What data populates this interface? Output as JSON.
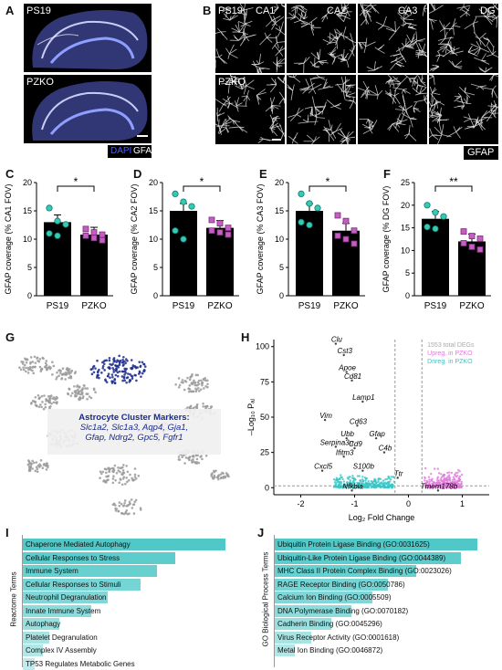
{
  "panel_labels": {
    "A": "A",
    "B": "B",
    "C": "C",
    "D": "D",
    "E": "E",
    "F": "F",
    "G": "G",
    "H": "H",
    "I": "I",
    "J": "J"
  },
  "panelA": {
    "top": "PS19",
    "bottom": "PZKO",
    "legend_dapi": "DAPI",
    "legend_gfap": "GFAP"
  },
  "panelB": {
    "row1": "PS19",
    "row2": "PZKO",
    "cols": [
      "CA1",
      "CA2",
      "CA3",
      "DG"
    ],
    "legend": "GFAP"
  },
  "bar_panels": [
    {
      "id": "C",
      "ylabel": "GFAP coverage (% CA1 FOV)",
      "ylim": [
        0,
        20
      ],
      "ticks": [
        "0",
        "5",
        "10",
        "15",
        "20"
      ],
      "categories": [
        "PS19",
        "PZKO"
      ],
      "values": [
        13.0,
        10.8
      ],
      "sig": "*",
      "points": [
        [
          15.5,
          13.2,
          12.6,
          11.0,
          10.6
        ],
        [
          11.8,
          11.2,
          10.8,
          10.6,
          10.2,
          9.8
        ]
      ]
    },
    {
      "id": "D",
      "ylabel": "GFAP coverage (% CA2 FOV)",
      "ylim": [
        0,
        20
      ],
      "ticks": [
        "0",
        "5",
        "10",
        "15",
        "20"
      ],
      "categories": [
        "PS19",
        "PZKO"
      ],
      "values": [
        15.0,
        12.0
      ],
      "sig": "*",
      "points": [
        [
          18.0,
          16.6,
          15.8,
          11.5,
          10.0
        ],
        [
          13.4,
          12.8,
          12.0,
          11.5,
          11.2,
          10.8
        ]
      ]
    },
    {
      "id": "E",
      "ylabel": "GFAP coverage (% CA3 FOV)",
      "ylim": [
        0,
        20
      ],
      "ticks": [
        "0",
        "5",
        "10",
        "15",
        "20"
      ],
      "categories": [
        "PS19",
        "PZKO"
      ],
      "values": [
        15.0,
        11.5
      ],
      "sig": "*",
      "points": [
        [
          18.0,
          16.3,
          15.5,
          13.0,
          12.5
        ],
        [
          14.2,
          13.2,
          11.5,
          10.6,
          10.0,
          9.2
        ]
      ]
    },
    {
      "id": "F",
      "ylabel": "GFAP coverage (% DG FOV)",
      "ylim": [
        0,
        25
      ],
      "ticks": [
        "0",
        "5",
        "10",
        "15",
        "20",
        "25"
      ],
      "categories": [
        "PS19",
        "PZKO"
      ],
      "values": [
        17.0,
        12.0
      ],
      "sig": "**",
      "points": [
        [
          20.0,
          18.4,
          17.5,
          15.2,
          14.8
        ],
        [
          14.2,
          13.2,
          12.6,
          11.6,
          10.8,
          10.2
        ]
      ]
    }
  ],
  "panelG": {
    "title": "Astrocyte Cluster Markers:",
    "line1": "Slc1a2, Slc1a3, Aqp4, Gja1,",
    "line2": "Gfap, Ndrg2, Gpc5, Fgfr1"
  },
  "panelH": {
    "xlabel": "Log₂ Fold Change",
    "ylabel": "–Log₁₀ Pₐⱼ",
    "xticks": [
      "-2",
      "-1",
      "0",
      "1"
    ],
    "yticks": [
      "0",
      "25",
      "50",
      "75",
      "100"
    ],
    "legend": [
      "1553 total DEGs",
      "Upreg. in PZKO",
      "Dnreg. in PZKO"
    ],
    "genes": [
      {
        "name": "Clu",
        "x": -1.35,
        "y": 102
      },
      {
        "name": "Cst3",
        "x": -1.2,
        "y": 94
      },
      {
        "name": "Apoe",
        "x": -1.15,
        "y": 82
      },
      {
        "name": "Cd81",
        "x": -1.05,
        "y": 76
      },
      {
        "name": "Lamp1",
        "x": -0.85,
        "y": 61
      },
      {
        "name": "Vim",
        "x": -1.55,
        "y": 48
      },
      {
        "name": "Cd63",
        "x": -0.95,
        "y": 44
      },
      {
        "name": "Ubb",
        "x": -1.15,
        "y": 35
      },
      {
        "name": "Gfap",
        "x": -0.6,
        "y": 35
      },
      {
        "name": "Serpina3n",
        "x": -1.35,
        "y": 29
      },
      {
        "name": "Cd9",
        "x": -1.0,
        "y": 28
      },
      {
        "name": "C4b",
        "x": -0.45,
        "y": 25
      },
      {
        "name": "Ifitm3",
        "x": -1.2,
        "y": 22
      },
      {
        "name": "Cxcl5",
        "x": -1.6,
        "y": 12
      },
      {
        "name": "S100b",
        "x": -0.85,
        "y": 12
      },
      {
        "name": "Ttr",
        "x": -0.2,
        "y": 7
      },
      {
        "name": "Nfkbia",
        "x": -1.05,
        "y": -2
      },
      {
        "name": "Tmem178b",
        "x": 0.55,
        "y": -2
      }
    ]
  },
  "panelI": {
    "axis_label": "Reactome Terms",
    "color": "#7fd6d6",
    "terms": [
      {
        "label": "Chaperone Mediated Autophagy",
        "value": 1.0
      },
      {
        "label": "Cellular Responses to Stress",
        "value": 0.75
      },
      {
        "label": "Immune System",
        "value": 0.66
      },
      {
        "label": "Cellular Responses to Stimuli",
        "value": 0.58
      },
      {
        "label": "Neutrophil Degranulation",
        "value": 0.42
      },
      {
        "label": "Innate Immune System",
        "value": 0.34
      },
      {
        "label": "Autophagy",
        "value": 0.18
      },
      {
        "label": "Platelet Degranulation",
        "value": 0.13
      },
      {
        "label": "Complex IV Assembly",
        "value": 0.1
      },
      {
        "label": "TP53 Regulates Metabolic Genes",
        "value": 0.06
      }
    ]
  },
  "panelJ": {
    "axis_label": "GO Biological Process Terms",
    "color": "#7fd6d6",
    "terms": [
      {
        "label": "Ubiquitin Protein Ligase Binding (GO:0031625)",
        "value": 1.0
      },
      {
        "label": "Ubiquitin-Like Protein Ligase Binding (GO:0044389)",
        "value": 0.92
      },
      {
        "label": "MHC Class II Protein Complex Binding (GO:0023026)",
        "value": 0.7
      },
      {
        "label": "RAGE Receptor Binding (GO:0050786)",
        "value": 0.56
      },
      {
        "label": "Calcium Ion Binding (GO:0005509)",
        "value": 0.48
      },
      {
        "label": "DNA Polymerase Binding (GO:0070182)",
        "value": 0.38
      },
      {
        "label": "Cadherin Binding (GO:0045296)",
        "value": 0.28
      },
      {
        "label": "Virus Receptor Activity (GO:0001618)",
        "value": 0.18
      },
      {
        "label": "Metal Ion Binding (GO:0046872)",
        "value": 0.1
      }
    ]
  },
  "colors": {
    "ps19": "#36c9b4",
    "pzko": "#c45ec2",
    "blue": "#1a2a8a",
    "teal": "#39c4c4",
    "pink": "#e07ad8"
  }
}
